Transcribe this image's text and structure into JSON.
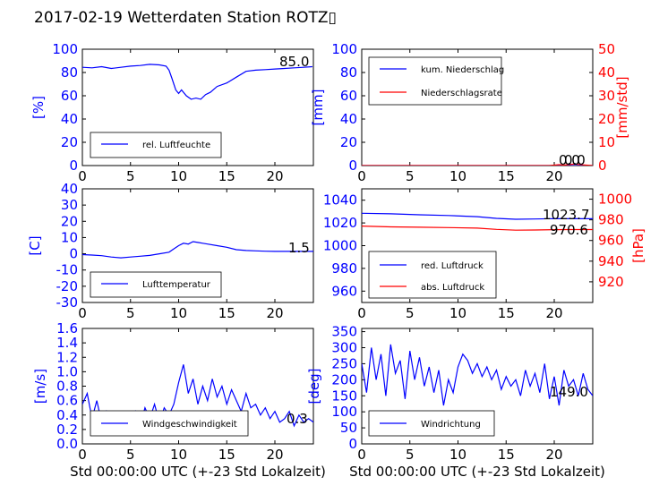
{
  "suptitle": "2017-02-19 Wetterdaten Station ROTZ▯",
  "colors": {
    "blue": "#0000ff",
    "red": "#ff0000",
    "black": "#000000"
  },
  "chart_data": [
    {
      "type": "line",
      "ylabel": "[%]",
      "xlim": [
        0,
        24
      ],
      "ylim": [
        0,
        100
      ],
      "xticks": [
        0,
        5,
        10,
        15,
        20
      ],
      "yticks": [
        0,
        20,
        40,
        60,
        80,
        100
      ],
      "legend": "lower-left",
      "series": [
        {
          "name": "rel. Luftfeuchte",
          "color": "#0000ff",
          "x": [
            0,
            1,
            2,
            3,
            4,
            5,
            6,
            7,
            8,
            8.7,
            9,
            9.3,
            9.7,
            10,
            10.3,
            10.8,
            11.3,
            11.8,
            12.3,
            12.8,
            13.3,
            14,
            15,
            16,
            17,
            18,
            19,
            20,
            21,
            22,
            23,
            23.9
          ],
          "y": [
            84.5,
            84,
            85,
            83.5,
            84.5,
            85.5,
            86,
            87,
            86.5,
            85.5,
            82,
            75,
            65,
            62,
            65,
            60,
            57,
            58,
            57,
            61,
            63,
            68,
            71,
            76,
            81,
            82,
            82.5,
            83,
            83.5,
            84,
            84.5,
            85
          ]
        }
      ],
      "annotations": [
        {
          "text": "85.0"
        }
      ]
    },
    {
      "type": "line",
      "ylabel": "[mm]",
      "ylabel2": "[mm/std]",
      "xlim": [
        0,
        24
      ],
      "ylim": [
        0,
        100
      ],
      "ylim2": [
        0,
        50
      ],
      "xticks": [
        0,
        5,
        10,
        15,
        20
      ],
      "yticks": [
        0,
        20,
        40,
        60,
        80,
        100
      ],
      "yticks2": [
        0,
        10,
        20,
        30,
        40,
        50
      ],
      "legend": "upper-left",
      "series": [
        {
          "name": "kum. Niederschlag",
          "color": "#0000ff",
          "axis": "left",
          "x": [
            0,
            24
          ],
          "y": [
            0,
            0
          ]
        },
        {
          "name": "Niederschlagsrate",
          "color": "#ff0000",
          "axis": "right",
          "x": [
            0,
            19.5,
            20.5,
            21,
            22,
            23,
            24
          ],
          "y": [
            0,
            0,
            0.4,
            0.2,
            0.6,
            0.3,
            0
          ]
        }
      ],
      "annotations": [
        {
          "text": "0.0"
        },
        {
          "text": "0.0"
        }
      ]
    },
    {
      "type": "line",
      "ylabel": "[C]",
      "xlim": [
        0,
        24
      ],
      "ylim": [
        -30,
        40
      ],
      "xticks": [
        0,
        5,
        10,
        15,
        20
      ],
      "yticks": [
        -30,
        -20,
        -10,
        0,
        10,
        20,
        30,
        40
      ],
      "legend": "lower-left",
      "series": [
        {
          "name": "Lufttemperatur",
          "color": "#0000ff",
          "x": [
            0,
            1,
            2,
            3,
            4,
            5,
            6,
            7,
            8,
            9,
            9.5,
            10,
            10.5,
            11,
            11.5,
            12,
            12.5,
            13,
            14,
            15,
            16,
            17,
            18,
            19,
            20,
            21,
            22,
            23,
            24
          ],
          "y": [
            -0.5,
            -0.8,
            -1.2,
            -2,
            -2.5,
            -2,
            -1.5,
            -1,
            0,
            1,
            3,
            5,
            6.5,
            6,
            7.5,
            7,
            6.5,
            6,
            5,
            4,
            2.5,
            2,
            1.8,
            1.6,
            1.5,
            1.5,
            1.5,
            1.5,
            1.5
          ]
        }
      ],
      "annotations": [
        {
          "text": "1.5"
        }
      ]
    },
    {
      "type": "line",
      "ylabel2": "[hPa]",
      "xlim": [
        0,
        24
      ],
      "ylim": [
        950,
        1050
      ],
      "ylim2": [
        900,
        1010
      ],
      "xticks": [
        0,
        5,
        10,
        15,
        20
      ],
      "yticks": [
        960,
        980,
        1000,
        1020,
        1040
      ],
      "yticks2": [
        920,
        940,
        960,
        980,
        1000
      ],
      "legend": "lower-left",
      "series": [
        {
          "name": "red. Luftdruck",
          "color": "#0000ff",
          "axis": "left",
          "x": [
            0,
            3,
            6,
            9,
            12,
            14,
            16,
            18,
            20,
            22,
            24
          ],
          "y": [
            1028.5,
            1028,
            1027.2,
            1026.5,
            1025.5,
            1024,
            1023.2,
            1023.5,
            1023.8,
            1023.7,
            1023.7
          ]
        },
        {
          "name": "abs. Luftdruck",
          "color": "#ff0000",
          "axis": "right",
          "x": [
            0,
            3,
            6,
            9,
            12,
            14,
            16,
            18,
            20,
            22,
            24
          ],
          "y": [
            974,
            973.2,
            972.8,
            972.5,
            972,
            970.8,
            970,
            970.2,
            970.5,
            970.6,
            970.6
          ]
        }
      ],
      "annotations": [
        {
          "text": "1023.7"
        },
        {
          "text": "970.6"
        }
      ]
    },
    {
      "type": "line",
      "ylabel": "[m/s]",
      "xlim": [
        0,
        24
      ],
      "ylim": [
        0,
        1.6
      ],
      "xticks": [
        0,
        5,
        10,
        15,
        20
      ],
      "yticks": [
        0.0,
        0.2,
        0.4,
        0.6,
        0.8,
        1.0,
        1.2,
        1.4,
        1.6
      ],
      "legend": "lower-center",
      "series": [
        {
          "name": "Windgeschwindigkeit",
          "color": "#0000ff",
          "x": [
            0,
            0.5,
            1,
            1.5,
            2,
            2.5,
            3,
            3.5,
            4,
            4.5,
            5,
            5.5,
            6,
            6.5,
            7,
            7.5,
            8,
            8.5,
            9,
            9.5,
            10,
            10.5,
            11,
            11.5,
            12,
            12.5,
            13,
            13.5,
            14,
            14.5,
            15,
            15.5,
            16,
            16.5,
            17,
            17.5,
            18,
            18.5,
            19,
            19.5,
            20,
            20.5,
            21,
            21.5,
            22,
            22.5,
            23,
            23.5,
            24
          ],
          "y": [
            0.55,
            0.7,
            0.35,
            0.6,
            0.3,
            0.45,
            0.25,
            0.4,
            0.2,
            0.35,
            0.3,
            0.45,
            0.25,
            0.5,
            0.35,
            0.55,
            0.3,
            0.5,
            0.4,
            0.55,
            0.85,
            1.1,
            0.7,
            0.9,
            0.55,
            0.8,
            0.6,
            0.9,
            0.65,
            0.8,
            0.55,
            0.75,
            0.6,
            0.45,
            0.7,
            0.5,
            0.55,
            0.4,
            0.5,
            0.35,
            0.45,
            0.3,
            0.35,
            0.45,
            0.25,
            0.4,
            0.3,
            0.35,
            0.3
          ]
        }
      ],
      "annotations": [
        {
          "text": "0.3"
        }
      ]
    },
    {
      "type": "line",
      "ylabel": "[deg]",
      "xlim": [
        0,
        24
      ],
      "ylim": [
        0,
        360
      ],
      "xticks": [
        0,
        5,
        10,
        15,
        20
      ],
      "yticks": [
        0,
        50,
        100,
        150,
        200,
        250,
        300,
        350
      ],
      "legend": "lower-left",
      "series": [
        {
          "name": "Windrichtung",
          "color": "#0000ff",
          "x": [
            0,
            0.5,
            1,
            1.5,
            2,
            2.5,
            3,
            3.5,
            4,
            4.5,
            5,
            5.5,
            6,
            6.5,
            7,
            7.5,
            8,
            8.5,
            9,
            9.5,
            10,
            10.5,
            11,
            11.5,
            12,
            12.5,
            13,
            13.5,
            14,
            14.5,
            15,
            15.5,
            16,
            16.5,
            17,
            17.5,
            18,
            18.5,
            19,
            19.5,
            20,
            20.5,
            21,
            21.5,
            22,
            22.5,
            23,
            23.5,
            24
          ],
          "y": [
            250,
            160,
            300,
            200,
            280,
            150,
            310,
            220,
            260,
            140,
            290,
            200,
            270,
            180,
            240,
            160,
            230,
            120,
            200,
            160,
            240,
            280,
            260,
            220,
            250,
            210,
            240,
            200,
            230,
            170,
            210,
            180,
            200,
            150,
            230,
            180,
            220,
            160,
            250,
            140,
            210,
            120,
            230,
            180,
            200,
            150,
            220,
            170,
            150
          ]
        }
      ],
      "annotations": [
        {
          "text": "149.0"
        }
      ]
    }
  ],
  "xlabels": [
    "Std 00:00:00 UTC (+-23 Std Lokalzeit)",
    "Std 00:00:00 UTC (+-23 Std Lokalzeit)"
  ]
}
